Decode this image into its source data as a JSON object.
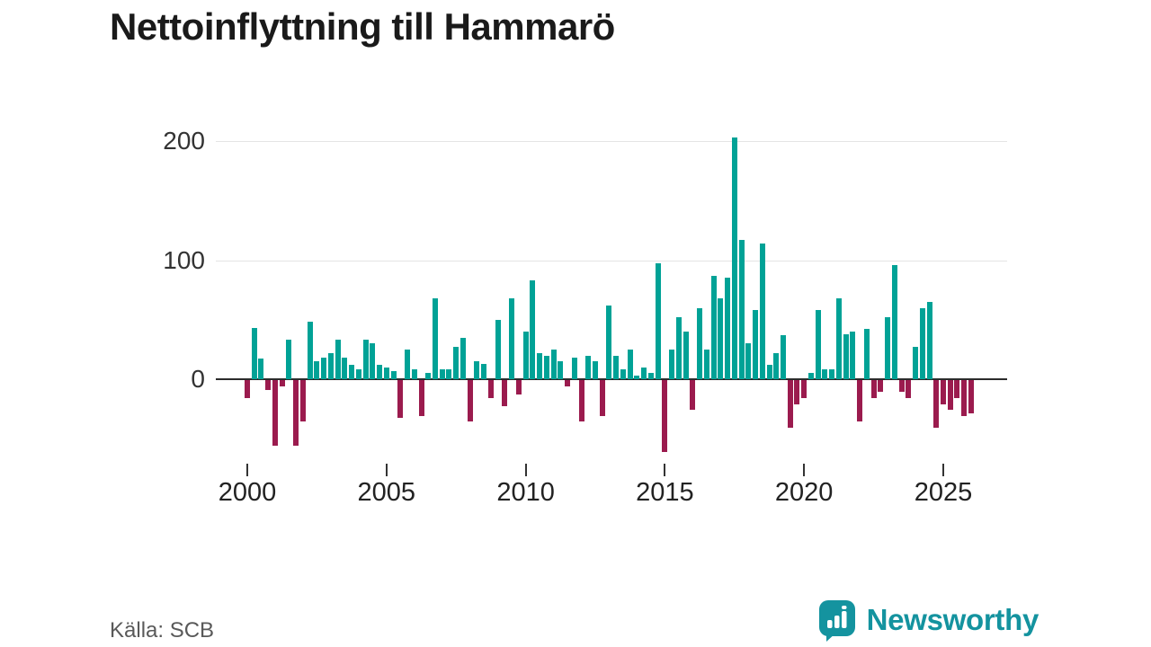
{
  "title": "Nettoinflyttning till Hammarö",
  "source": "Källa: SCB",
  "logo": {
    "text": "Newsworthy",
    "color": "#14939F"
  },
  "chart_data": {
    "type": "bar",
    "title": "Nettoinflyttning till Hammarö",
    "x_start": "2000-Q1",
    "x_end": "2026-Q1",
    "interval": "quarter",
    "values": [
      -15,
      43,
      17,
      -8,
      -55,
      -5,
      33,
      -55,
      -35,
      48,
      15,
      18,
      22,
      33,
      18,
      12,
      8,
      33,
      30,
      12,
      10,
      7,
      -32,
      25,
      8,
      -30,
      5,
      68,
      8,
      8,
      27,
      35,
      -35,
      15,
      13,
      -15,
      50,
      -22,
      68,
      -12,
      40,
      83,
      22,
      20,
      25,
      15,
      -5,
      18,
      -35,
      20,
      15,
      -30,
      62,
      20,
      8,
      25,
      3,
      10,
      5,
      97,
      -60,
      25,
      52,
      40,
      -25,
      60,
      25,
      87,
      68,
      85,
      203,
      117,
      30,
      58,
      114,
      12,
      22,
      37,
      -40,
      -20,
      -15,
      5,
      58,
      8,
      8,
      68,
      38,
      40,
      -35,
      42,
      -15,
      -10,
      52,
      96,
      -10,
      -15,
      27,
      60,
      65,
      -40,
      -20,
      -25,
      -15,
      -30,
      -28
    ],
    "yticks": [
      0,
      100,
      200
    ],
    "ylim": [
      -70,
      215
    ],
    "xticks": [
      2000,
      2005,
      2010,
      2015,
      2020,
      2025
    ],
    "positive_color": "#00A296",
    "negative_color": "#9B1B4E",
    "grid": "horizontal",
    "legend": "none"
  }
}
